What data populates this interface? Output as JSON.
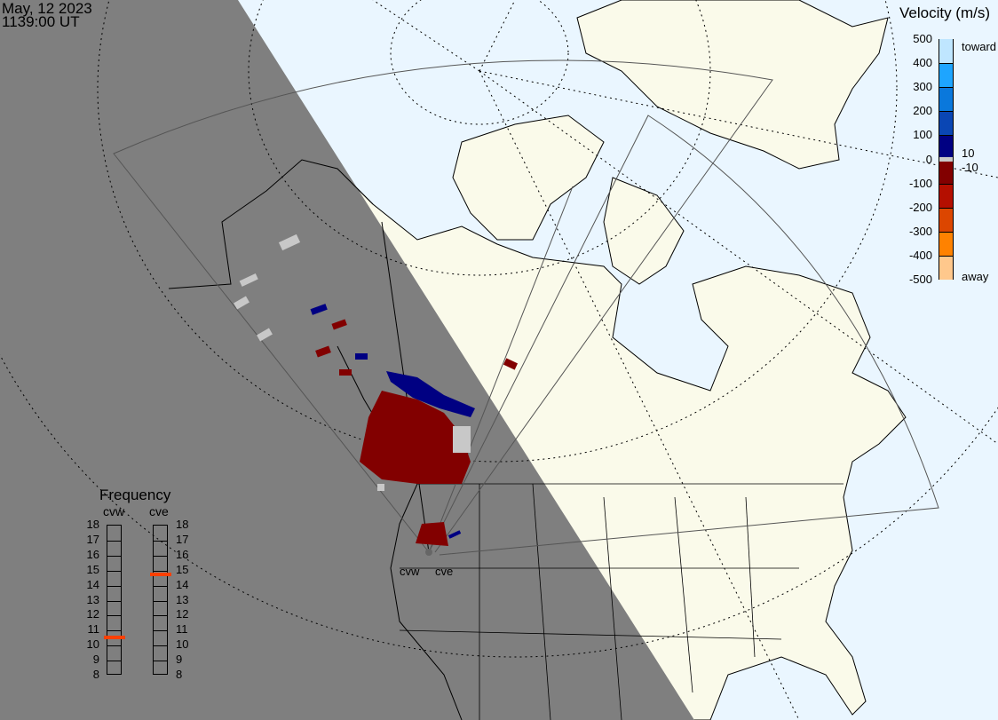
{
  "header": {
    "date": "May, 12 2023",
    "time": "1139:00 UT"
  },
  "colors": {
    "ocean": "#eaf6ff",
    "land": "#fafaea",
    "night": "#7f7f7f",
    "frequency_marker": "#ff4000"
  },
  "velocity_scale": {
    "title": "Velocity (m/s)",
    "ticks": [
      "500",
      "400",
      "300",
      "200",
      "100",
      "0",
      "-100",
      "-200",
      "-300",
      "-400",
      "-500"
    ],
    "label_toward": "toward",
    "label_away": "away",
    "label_pos_threshold": "10",
    "label_neg_threshold": "-10",
    "bands": [
      {
        "from": 400,
        "to": 500,
        "color": "#bfe6ff"
      },
      {
        "from": 300,
        "to": 400,
        "color": "#1ea5ff"
      },
      {
        "from": 200,
        "to": 300,
        "color": "#0a78dc"
      },
      {
        "from": 100,
        "to": 200,
        "color": "#0a46b4"
      },
      {
        "from": 10,
        "to": 100,
        "color": "#000082"
      },
      {
        "from": -10,
        "to": 10,
        "color": "#c8c8c8"
      },
      {
        "from": -100,
        "to": -10,
        "color": "#820000"
      },
      {
        "from": -200,
        "to": -100,
        "color": "#b40f00"
      },
      {
        "from": -300,
        "to": -200,
        "color": "#dc4600"
      },
      {
        "from": -400,
        "to": -300,
        "color": "#ff8200"
      },
      {
        "from": -500,
        "to": -400,
        "color": "#ffc88c"
      }
    ]
  },
  "frequency": {
    "title": "Frequency",
    "ticks": [
      "18",
      "17",
      "16",
      "15",
      "14",
      "13",
      "12",
      "11",
      "10",
      "9",
      "8"
    ],
    "radars": [
      {
        "name": "cvw",
        "value_mhz": 10.5
      },
      {
        "name": "cve",
        "value_mhz": 14.7
      }
    ]
  },
  "radar_sites": {
    "west": "cvw",
    "east": "cve"
  }
}
